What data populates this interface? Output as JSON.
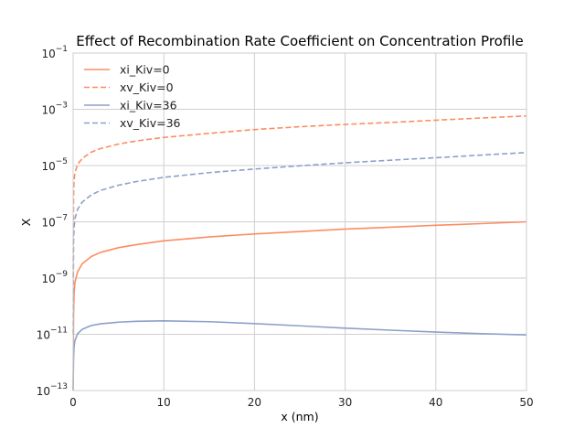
{
  "chart_data": {
    "type": "line",
    "title": "Effect of Recombination Rate Coefficient on Concentration Profile",
    "xlabel": "x (nm)",
    "ylabel": "X",
    "xlim": [
      0,
      50
    ],
    "ylim": [
      1e-13,
      0.1
    ],
    "yscale": "log",
    "grid": true,
    "legend_position": "top-left",
    "x_ticks": [
      0,
      10,
      20,
      30,
      40,
      50
    ],
    "y_tick_exponents": [
      -13,
      -11,
      -9,
      -7,
      -5,
      -3,
      -1
    ],
    "x": [
      0,
      0.05,
      0.1,
      0.2,
      0.5,
      1,
      2,
      3,
      5,
      7,
      10,
      15,
      20,
      25,
      30,
      35,
      40,
      45,
      50
    ],
    "series": [
      {
        "name": "xi_Kiv=0",
        "color": "#fc8d62",
        "style": "solid",
        "y": [
          1e-13,
          5e-11,
          2.8e-10,
          7e-10,
          1.7e-09,
          3.2e-09,
          5.8e-09,
          8.1e-09,
          1.2e-08,
          1.55e-08,
          2.1e-08,
          2.9e-08,
          3.7e-08,
          4.5e-08,
          5.5e-08,
          6.4e-08,
          7.5e-08,
          8.6e-08,
          1e-07
        ]
      },
      {
        "name": "xv_Kiv=0",
        "color": "#fc8d62",
        "style": "dashed",
        "y": [
          1e-09,
          8e-07,
          3e-06,
          5.5e-06,
          1.1e-05,
          1.8e-05,
          3e-05,
          4e-05,
          5.8e-05,
          7.5e-05,
          0.0001,
          0.00014,
          0.00019,
          0.00024,
          0.00029,
          0.00034,
          0.00041,
          0.00049,
          0.00058
        ]
      },
      {
        "name": "xi_Kiv=36",
        "color": "#8da0cb",
        "style": "solid",
        "y": [
          1e-13,
          1.5e-12,
          3.5e-12,
          6e-12,
          1.05e-11,
          1.5e-11,
          2.05e-11,
          2.35e-11,
          2.7e-11,
          2.9e-11,
          3e-11,
          2.8e-11,
          2.4e-11,
          2e-11,
          1.65e-11,
          1.4e-11,
          1.2e-11,
          1.05e-11,
          9.5e-12
        ]
      },
      {
        "name": "xv_Kiv=36",
        "color": "#8da0cb",
        "style": "dashed",
        "y": [
          1e-11,
          2e-08,
          6e-08,
          1.3e-07,
          2.8e-07,
          5e-07,
          9e-07,
          1.3e-06,
          2e-06,
          2.7e-06,
          3.8e-06,
          5.6e-06,
          7.5e-06,
          9.8e-06,
          1.25e-05,
          1.55e-05,
          1.9e-05,
          2.35e-05,
          2.9e-05
        ]
      }
    ]
  }
}
